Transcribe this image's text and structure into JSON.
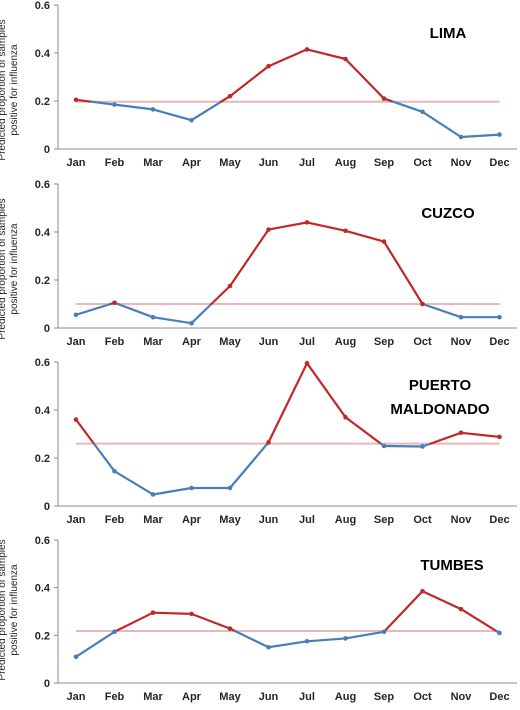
{
  "chart_data": [
    {
      "type": "line",
      "title": "LIMA",
      "ylabel": "Predicted proportion of samples positive for influenza",
      "xlabel": "",
      "categories": [
        "Jan",
        "Feb",
        "Mar",
        "Apr",
        "May",
        "Jun",
        "Jul",
        "Aug",
        "Sep",
        "Oct",
        "Nov",
        "Dec"
      ],
      "values": [
        0.205,
        0.185,
        0.165,
        0.12,
        0.22,
        0.345,
        0.415,
        0.375,
        0.21,
        0.155,
        0.05,
        0.06
      ],
      "threshold": 0.197,
      "ylim": [
        0,
        0.6
      ],
      "yticks": [
        "0",
        "0.2",
        "0.4",
        "0.6"
      ],
      "grid": false,
      "colors": {
        "below": "#4a7ebb",
        "above": "#c0282a",
        "threshold": "#e6b8b7"
      }
    },
    {
      "type": "line",
      "title": "CUZCO",
      "ylabel": "Predicted proportion of samples positive for influenza",
      "xlabel": "",
      "categories": [
        "Jan",
        "Feb",
        "Mar",
        "Apr",
        "May",
        "Jun",
        "Jul",
        "Aug",
        "Sep",
        "Oct",
        "Nov",
        "Dec"
      ],
      "values": [
        0.055,
        0.105,
        0.045,
        0.02,
        0.175,
        0.41,
        0.44,
        0.405,
        0.36,
        0.1,
        0.045,
        0.045
      ],
      "threshold": 0.1,
      "ylim": [
        0,
        0.6
      ],
      "yticks": [
        "0",
        "0.2",
        "0.4",
        "0.6"
      ],
      "grid": false,
      "colors": {
        "below": "#4a7ebb",
        "above": "#c0282a",
        "threshold": "#e6b8b7"
      }
    },
    {
      "type": "line",
      "title": "PUERTO MALDONADO",
      "ylabel": "",
      "xlabel": "",
      "categories": [
        "Jan",
        "Feb",
        "Mar",
        "Apr",
        "May",
        "Jun",
        "Jul",
        "Aug",
        "Sep",
        "Oct",
        "Nov",
        "Dec"
      ],
      "values": [
        0.36,
        0.145,
        0.048,
        0.075,
        0.075,
        0.265,
        0.595,
        0.37,
        0.25,
        0.248,
        0.305,
        0.288
      ],
      "threshold": 0.26,
      "ylim": [
        0,
        0.6
      ],
      "yticks": [
        "0",
        "0.2",
        "0.4",
        "0.6"
      ],
      "grid": false,
      "colors": {
        "below": "#4a7ebb",
        "above": "#c0282a",
        "threshold": "#e6b8b7"
      }
    },
    {
      "type": "line",
      "title": "TUMBES",
      "ylabel": "Predicted proportion of samples positive for influenza",
      "xlabel": "",
      "categories": [
        "Jan",
        "Feb",
        "Mar",
        "Apr",
        "May",
        "Jun",
        "Jul",
        "Aug",
        "Sep",
        "Oct",
        "Nov",
        "Dec"
      ],
      "values": [
        0.11,
        0.215,
        0.295,
        0.29,
        0.228,
        0.15,
        0.175,
        0.187,
        0.215,
        0.385,
        0.31,
        0.21
      ],
      "threshold": 0.218,
      "ylim": [
        0,
        0.6
      ],
      "yticks": [
        "0",
        "0.2",
        "0.4",
        "0.6"
      ],
      "grid": false,
      "colors": {
        "below": "#4a7ebb",
        "above": "#c0282a",
        "threshold": "#e6b8b7"
      }
    }
  ]
}
